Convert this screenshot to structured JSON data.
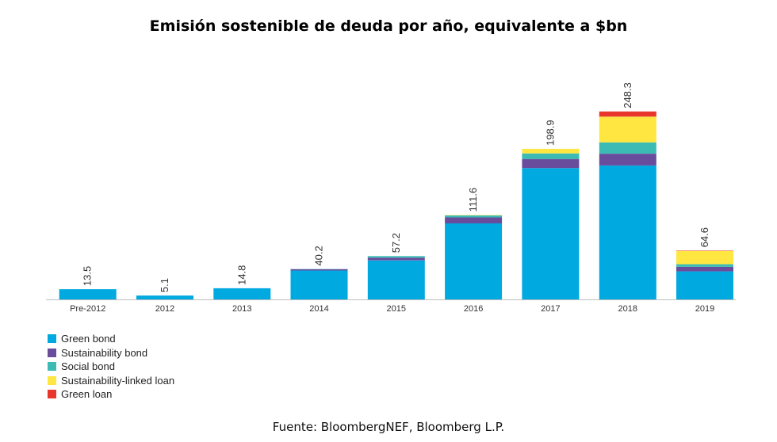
{
  "title": "Emisión sostenible de deuda por año, equivalente a $bn",
  "source": "Fuente: BloombergNEF, Bloomberg L.P.",
  "chart_data": {
    "type": "bar",
    "stacked": true,
    "title": "Emisión sostenible de deuda por año, equivalente a $bn",
    "xlabel": "",
    "ylabel": "",
    "ylim": [
      0,
      270
    ],
    "grid": false,
    "legend_position": "bottom-left",
    "categories": [
      "Pre-2012",
      "2012",
      "2013",
      "2014",
      "2015",
      "2016",
      "2017",
      "2018",
      "2019"
    ],
    "totals": [
      "13.5",
      "5.1",
      "14.8",
      "40.2",
      "57.2",
      "111.6",
      "198.9",
      "248.3",
      "64.6"
    ],
    "series": [
      {
        "name": "Green bond",
        "color": "#00a9e0",
        "values": [
          13.5,
          5.1,
          14.8,
          38.2,
          51.5,
          100.5,
          173.5,
          177.0,
          37.0
        ]
      },
      {
        "name": "Sustainability bond",
        "color": "#6a4c9c",
        "values": [
          0,
          0,
          0,
          1.8,
          3.5,
          7.8,
          12.0,
          15.5,
          6.0
        ]
      },
      {
        "name": "Social bond",
        "color": "#3cbab4",
        "values": [
          0,
          0,
          0,
          0.2,
          2.2,
          2.8,
          7.4,
          15.0,
          3.5
        ]
      },
      {
        "name": "Sustainability-linked loan",
        "color": "#ffe640",
        "values": [
          0,
          0,
          0,
          0,
          0,
          0.5,
          6.0,
          34.0,
          17.6
        ]
      },
      {
        "name": "Green loan",
        "color": "#e8362d",
        "values": [
          0,
          0,
          0,
          0,
          0,
          0,
          0,
          6.8,
          0.5
        ]
      }
    ]
  }
}
